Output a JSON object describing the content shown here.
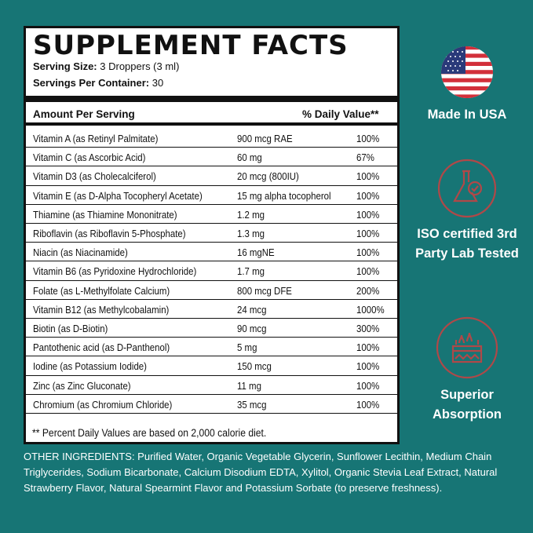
{
  "facts": {
    "title": "SUPPLEMENT FACTS",
    "serving_size_label": "Serving Size:",
    "serving_size": "3 Droppers (3 ml)",
    "servings_label": "Servings Per Container:",
    "servings": "30",
    "header_amount": "Amount Per Serving",
    "header_dv": "% Daily Value**",
    "rows": [
      {
        "name": "Vitamin A (as Retinyl Palmitate)",
        "amount": "900 mcg RAE",
        "dv": "100%"
      },
      {
        "name": "Vitamin C (as Ascorbic Acid)",
        "amount": "60 mg",
        "dv": "67%"
      },
      {
        "name": "Vitamin D3 (as Cholecalciferol)",
        "amount": "20 mcg (800IU)",
        "dv": "100%"
      },
      {
        "name": "Vitamin E (as D-Alpha Tocopheryl Acetate)",
        "amount": "15 mg alpha tocopherol",
        "dv": "100%"
      },
      {
        "name": "Thiamine (as Thiamine Mononitrate)",
        "amount": "1.2 mg",
        "dv": "100%"
      },
      {
        "name": "Riboflavin (as Riboflavin 5-Phosphate)",
        "amount": "1.3 mg",
        "dv": "100%"
      },
      {
        "name": "Niacin (as Niacinamide)",
        "amount": "16 mgNE",
        "dv": "100%"
      },
      {
        "name": "Vitamin B6 (as Pyridoxine Hydrochloride)",
        "amount": "1.7 mg",
        "dv": "100%"
      },
      {
        "name": "Folate (as L-Methylfolate Calcium)",
        "amount": "800 mcg DFE",
        "dv": "200%"
      },
      {
        "name": "Vitamin B12 (as Methylcobalamin)",
        "amount": "24 mcg",
        "dv": "1000%"
      },
      {
        "name": "Biotin (as D-Biotin)",
        "amount": "90 mcg",
        "dv": "300%"
      },
      {
        "name": "Pantothenic acid (as D-Panthenol)",
        "amount": "5 mg",
        "dv": "100%"
      },
      {
        "name": "Iodine (as Potassium Iodide)",
        "amount": "150 mcg",
        "dv": "100%"
      },
      {
        "name": "Zinc (as Zinc Gluconate)",
        "amount": "11 mg",
        "dv": "100%"
      },
      {
        "name": "Chromium (as Chromium Chloride)",
        "amount": "35 mcg",
        "dv": "100%"
      }
    ],
    "footnote": "** Percent Daily Values are based on 2,000 calorie diet."
  },
  "other_ingredients": "OTHER INGREDIENTS: Purified Water, Organic Vegetable Glycerin, Sunflower Lecithin, Medium Chain Triglycerides, Sodium Bicarbonate, Calcium Disodium EDTA, Xylitol, Organic Stevia Leaf Extract, Natural Strawberry Flavor, Natural Spearmint Flavor and Potassium Sorbate (to preserve freshness).",
  "badges": [
    {
      "icon": "us-flag-icon",
      "label": "Made In USA"
    },
    {
      "icon": "lab-flask-check-icon",
      "label": "ISO certified 3rd Party Lab Tested"
    },
    {
      "icon": "absorption-icon",
      "label": "Superior Absorption"
    }
  ],
  "colors": {
    "background": "#177575",
    "icon_red": "#b04848"
  }
}
